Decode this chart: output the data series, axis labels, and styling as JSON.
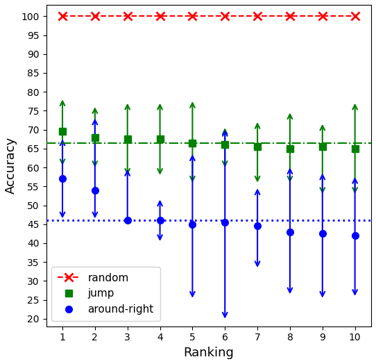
{
  "rankings": [
    1,
    2,
    3,
    4,
    5,
    6,
    7,
    8,
    9,
    10
  ],
  "random_y": [
    100,
    100,
    100,
    100,
    100,
    100,
    100,
    100,
    100,
    100
  ],
  "random_color": "#ff0000",
  "jump_y": [
    69.5,
    68.0,
    67.5,
    67.5,
    66.5,
    66.0,
    65.5,
    65.0,
    65.5,
    65.0
  ],
  "jump_up": [
    78.5,
    76.5,
    77.5,
    77.5,
    78.0,
    71.0,
    72.5,
    75.0,
    72.0,
    77.5
  ],
  "jump_down": [
    60.0,
    59.5,
    57.5,
    57.5,
    55.5,
    59.5,
    55.5,
    55.5,
    52.5,
    52.5
  ],
  "jump_hline": 66.5,
  "jump_color": "#008000",
  "around_y": [
    57.0,
    54.0,
    46.0,
    46.0,
    45.0,
    45.5,
    44.5,
    43.0,
    42.5,
    42.0
  ],
  "around_up": [
    68.0,
    73.5,
    60.0,
    52.0,
    64.0,
    70.5,
    55.0,
    60.5,
    59.0,
    58.0
  ],
  "around_down": [
    46.0,
    46.0,
    46.0,
    40.0,
    25.0,
    19.5,
    33.0,
    26.0,
    25.0,
    25.5
  ],
  "around_hline": 46.0,
  "around_color": "#0000ff",
  "xlabel": "Ranking",
  "ylabel": "Accuracy",
  "ylim": [
    18,
    103
  ],
  "yticks": [
    20,
    25,
    30,
    35,
    40,
    45,
    50,
    55,
    60,
    65,
    70,
    75,
    80,
    85,
    90,
    95,
    100
  ],
  "xlim": [
    0.5,
    10.5
  ],
  "figsize": [
    5.42,
    5.24
  ],
  "dpi": 100
}
